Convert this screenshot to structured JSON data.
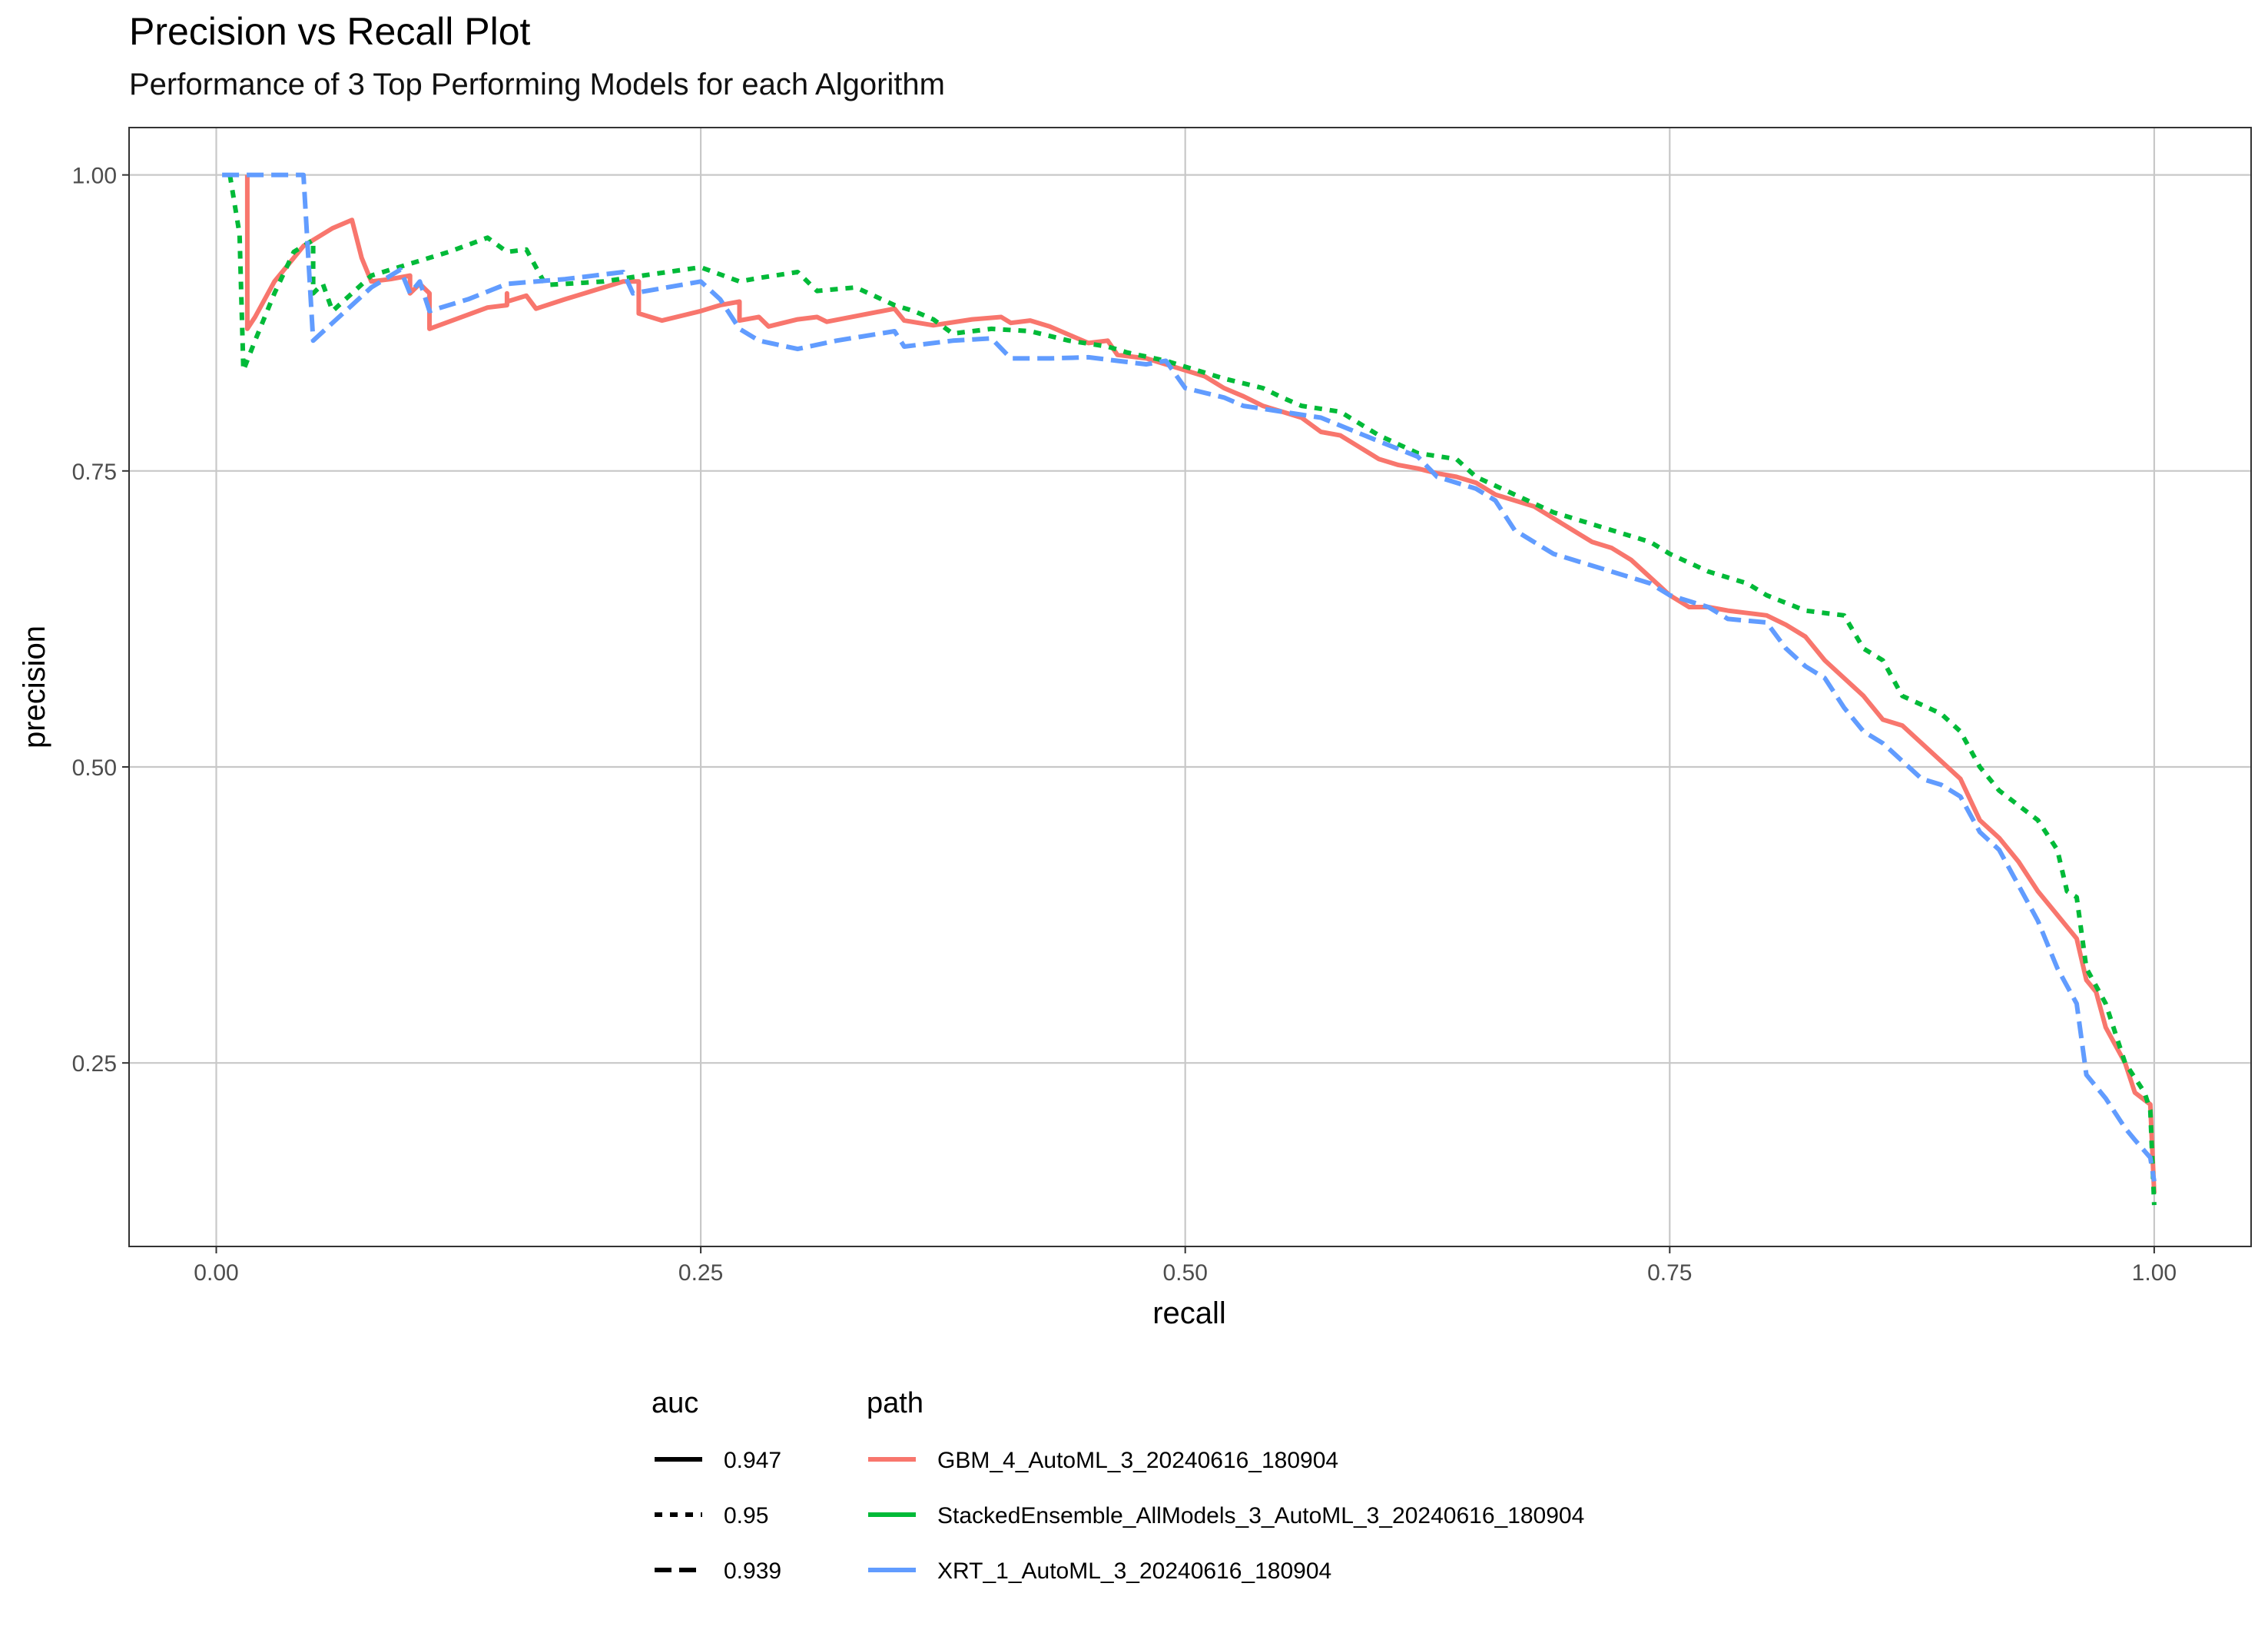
{
  "chart_data": {
    "type": "line",
    "title": "Precision vs Recall Plot",
    "subtitle": "Performance of 3 Top Performing Models for each Algorithm",
    "xlabel": "recall",
    "ylabel": "precision",
    "xlim": [
      -0.045,
      1.05
    ],
    "ylim": [
      0.095,
      1.04
    ],
    "x_ticks": [
      0.0,
      0.25,
      0.5,
      0.75,
      1.0
    ],
    "x_tick_labels": [
      "0.00",
      "0.25",
      "0.50",
      "0.75",
      "1.00"
    ],
    "y_ticks": [
      0.25,
      0.5,
      0.75,
      1.0
    ],
    "y_tick_labels": [
      "0.25",
      "0.50",
      "0.75",
      "1.00"
    ],
    "grid": true,
    "legend_position": "bottom",
    "legend": {
      "auc_title": "auc",
      "path_title": "path",
      "auc_entries": [
        {
          "label": "0.947",
          "linetype": "solid"
        },
        {
          "label": "0.95",
          "linetype": "dashed"
        },
        {
          "label": "0.939",
          "linetype": "longdash"
        }
      ]
    },
    "series": [
      {
        "name": "GBM_4_AutoML_3_20240616_180904",
        "auc": "0.947",
        "color": "#F8766D",
        "linetype": "solid",
        "points": [
          [
            0.016,
            1.0
          ],
          [
            0.016,
            0.87
          ],
          [
            0.02,
            0.88
          ],
          [
            0.03,
            0.91
          ],
          [
            0.045,
            0.94
          ],
          [
            0.06,
            0.955
          ],
          [
            0.07,
            0.962
          ],
          [
            0.075,
            0.93
          ],
          [
            0.08,
            0.91
          ],
          [
            0.09,
            0.912
          ],
          [
            0.1,
            0.915
          ],
          [
            0.1,
            0.9
          ],
          [
            0.105,
            0.908
          ],
          [
            0.11,
            0.9
          ],
          [
            0.11,
            0.87
          ],
          [
            0.13,
            0.882
          ],
          [
            0.14,
            0.888
          ],
          [
            0.15,
            0.89
          ],
          [
            0.15,
            0.9
          ],
          [
            0.15,
            0.893
          ],
          [
            0.16,
            0.898
          ],
          [
            0.165,
            0.887
          ],
          [
            0.18,
            0.895
          ],
          [
            0.21,
            0.91
          ],
          [
            0.218,
            0.91
          ],
          [
            0.218,
            0.883
          ],
          [
            0.23,
            0.877
          ],
          [
            0.25,
            0.885
          ],
          [
            0.26,
            0.89
          ],
          [
            0.27,
            0.893
          ],
          [
            0.27,
            0.877
          ],
          [
            0.28,
            0.88
          ],
          [
            0.285,
            0.872
          ],
          [
            0.3,
            0.878
          ],
          [
            0.31,
            0.88
          ],
          [
            0.315,
            0.876
          ],
          [
            0.35,
            0.887
          ],
          [
            0.355,
            0.877
          ],
          [
            0.37,
            0.873
          ],
          [
            0.39,
            0.878
          ],
          [
            0.405,
            0.88
          ],
          [
            0.41,
            0.875
          ],
          [
            0.42,
            0.877
          ],
          [
            0.43,
            0.872
          ],
          [
            0.44,
            0.865
          ],
          [
            0.45,
            0.858
          ],
          [
            0.46,
            0.86
          ],
          [
            0.465,
            0.848
          ],
          [
            0.48,
            0.845
          ],
          [
            0.49,
            0.84
          ],
          [
            0.5,
            0.835
          ],
          [
            0.51,
            0.83
          ],
          [
            0.52,
            0.82
          ],
          [
            0.53,
            0.813
          ],
          [
            0.54,
            0.805
          ],
          [
            0.55,
            0.8
          ],
          [
            0.56,
            0.795
          ],
          [
            0.57,
            0.783
          ],
          [
            0.58,
            0.78
          ],
          [
            0.59,
            0.77
          ],
          [
            0.6,
            0.76
          ],
          [
            0.61,
            0.755
          ],
          [
            0.62,
            0.752
          ],
          [
            0.63,
            0.748
          ],
          [
            0.64,
            0.745
          ],
          [
            0.65,
            0.74
          ],
          [
            0.66,
            0.73
          ],
          [
            0.67,
            0.725
          ],
          [
            0.68,
            0.72
          ],
          [
            0.69,
            0.71
          ],
          [
            0.7,
            0.7
          ],
          [
            0.71,
            0.69
          ],
          [
            0.72,
            0.685
          ],
          [
            0.73,
            0.675
          ],
          [
            0.74,
            0.66
          ],
          [
            0.75,
            0.645
          ],
          [
            0.76,
            0.635
          ],
          [
            0.77,
            0.635
          ],
          [
            0.78,
            0.632
          ],
          [
            0.79,
            0.63
          ],
          [
            0.8,
            0.628
          ],
          [
            0.81,
            0.62
          ],
          [
            0.82,
            0.61
          ],
          [
            0.83,
            0.59
          ],
          [
            0.84,
            0.575
          ],
          [
            0.85,
            0.56
          ],
          [
            0.86,
            0.54
          ],
          [
            0.87,
            0.535
          ],
          [
            0.88,
            0.52
          ],
          [
            0.89,
            0.505
          ],
          [
            0.9,
            0.49
          ],
          [
            0.91,
            0.455
          ],
          [
            0.92,
            0.44
          ],
          [
            0.93,
            0.42
          ],
          [
            0.94,
            0.395
          ],
          [
            0.95,
            0.375
          ],
          [
            0.96,
            0.355
          ],
          [
            0.965,
            0.32
          ],
          [
            0.97,
            0.31
          ],
          [
            0.975,
            0.28
          ],
          [
            0.985,
            0.25
          ],
          [
            0.99,
            0.225
          ],
          [
            0.998,
            0.215
          ],
          [
            1.0,
            0.14
          ]
        ]
      },
      {
        "name": "StackedEnsemble_AllModels_3_AutoML_3_20240616_180904",
        "auc": "0.95",
        "color": "#00BA38",
        "linetype": "dashed",
        "points": [
          [
            0.007,
            1.0
          ],
          [
            0.012,
            0.95
          ],
          [
            0.014,
            0.835
          ],
          [
            0.02,
            0.86
          ],
          [
            0.03,
            0.9
          ],
          [
            0.04,
            0.935
          ],
          [
            0.05,
            0.945
          ],
          [
            0.05,
            0.9
          ],
          [
            0.055,
            0.908
          ],
          [
            0.06,
            0.885
          ],
          [
            0.07,
            0.9
          ],
          [
            0.08,
            0.915
          ],
          [
            0.1,
            0.925
          ],
          [
            0.12,
            0.935
          ],
          [
            0.14,
            0.947
          ],
          [
            0.15,
            0.935
          ],
          [
            0.16,
            0.937
          ],
          [
            0.17,
            0.907
          ],
          [
            0.2,
            0.91
          ],
          [
            0.22,
            0.915
          ],
          [
            0.25,
            0.922
          ],
          [
            0.27,
            0.91
          ],
          [
            0.28,
            0.913
          ],
          [
            0.3,
            0.918
          ],
          [
            0.31,
            0.902
          ],
          [
            0.33,
            0.905
          ],
          [
            0.35,
            0.89
          ],
          [
            0.36,
            0.885
          ],
          [
            0.37,
            0.878
          ],
          [
            0.38,
            0.866
          ],
          [
            0.4,
            0.87
          ],
          [
            0.42,
            0.868
          ],
          [
            0.44,
            0.86
          ],
          [
            0.46,
            0.855
          ],
          [
            0.47,
            0.85
          ],
          [
            0.49,
            0.843
          ],
          [
            0.5,
            0.838
          ],
          [
            0.52,
            0.828
          ],
          [
            0.54,
            0.82
          ],
          [
            0.55,
            0.812
          ],
          [
            0.56,
            0.805
          ],
          [
            0.58,
            0.8
          ],
          [
            0.6,
            0.78
          ],
          [
            0.62,
            0.765
          ],
          [
            0.64,
            0.76
          ],
          [
            0.65,
            0.745
          ],
          [
            0.67,
            0.73
          ],
          [
            0.69,
            0.715
          ],
          [
            0.7,
            0.71
          ],
          [
            0.72,
            0.7
          ],
          [
            0.74,
            0.69
          ],
          [
            0.75,
            0.68
          ],
          [
            0.77,
            0.665
          ],
          [
            0.79,
            0.655
          ],
          [
            0.8,
            0.645
          ],
          [
            0.82,
            0.632
          ],
          [
            0.84,
            0.628
          ],
          [
            0.85,
            0.6
          ],
          [
            0.86,
            0.59
          ],
          [
            0.87,
            0.56
          ],
          [
            0.89,
            0.545
          ],
          [
            0.9,
            0.53
          ],
          [
            0.91,
            0.5
          ],
          [
            0.92,
            0.48
          ],
          [
            0.94,
            0.455
          ],
          [
            0.95,
            0.43
          ],
          [
            0.955,
            0.395
          ],
          [
            0.96,
            0.39
          ],
          [
            0.965,
            0.33
          ],
          [
            0.975,
            0.3
          ],
          [
            0.985,
            0.25
          ],
          [
            0.995,
            0.225
          ],
          [
            0.998,
            0.21
          ],
          [
            1.0,
            0.13
          ]
        ]
      },
      {
        "name": "XRT_1_AutoML_3_20240616_180904",
        "auc": "0.939",
        "color": "#619CFF",
        "linetype": "longdash",
        "points": [
          [
            0.003,
            1.0
          ],
          [
            0.045,
            1.0
          ],
          [
            0.05,
            0.86
          ],
          [
            0.06,
            0.875
          ],
          [
            0.07,
            0.89
          ],
          [
            0.08,
            0.905
          ],
          [
            0.09,
            0.915
          ],
          [
            0.095,
            0.92
          ],
          [
            0.1,
            0.9
          ],
          [
            0.105,
            0.91
          ],
          [
            0.11,
            0.885
          ],
          [
            0.13,
            0.895
          ],
          [
            0.15,
            0.908
          ],
          [
            0.18,
            0.912
          ],
          [
            0.21,
            0.918
          ],
          [
            0.215,
            0.9
          ],
          [
            0.25,
            0.91
          ],
          [
            0.26,
            0.895
          ],
          [
            0.27,
            0.87
          ],
          [
            0.28,
            0.86
          ],
          [
            0.3,
            0.853
          ],
          [
            0.32,
            0.86
          ],
          [
            0.35,
            0.868
          ],
          [
            0.355,
            0.855
          ],
          [
            0.38,
            0.86
          ],
          [
            0.4,
            0.862
          ],
          [
            0.41,
            0.845
          ],
          [
            0.43,
            0.845
          ],
          [
            0.45,
            0.846
          ],
          [
            0.48,
            0.84
          ],
          [
            0.49,
            0.843
          ],
          [
            0.5,
            0.82
          ],
          [
            0.52,
            0.812
          ],
          [
            0.53,
            0.805
          ],
          [
            0.55,
            0.8
          ],
          [
            0.57,
            0.795
          ],
          [
            0.6,
            0.775
          ],
          [
            0.62,
            0.762
          ],
          [
            0.63,
            0.745
          ],
          [
            0.65,
            0.735
          ],
          [
            0.66,
            0.725
          ],
          [
            0.67,
            0.7
          ],
          [
            0.68,
            0.69
          ],
          [
            0.69,
            0.68
          ],
          [
            0.7,
            0.675
          ],
          [
            0.72,
            0.665
          ],
          [
            0.74,
            0.655
          ],
          [
            0.75,
            0.645
          ],
          [
            0.76,
            0.64
          ],
          [
            0.77,
            0.635
          ],
          [
            0.78,
            0.625
          ],
          [
            0.8,
            0.622
          ],
          [
            0.81,
            0.6
          ],
          [
            0.82,
            0.585
          ],
          [
            0.83,
            0.575
          ],
          [
            0.84,
            0.55
          ],
          [
            0.85,
            0.53
          ],
          [
            0.86,
            0.52
          ],
          [
            0.87,
            0.505
          ],
          [
            0.88,
            0.49
          ],
          [
            0.89,
            0.485
          ],
          [
            0.9,
            0.475
          ],
          [
            0.91,
            0.445
          ],
          [
            0.92,
            0.43
          ],
          [
            0.93,
            0.4
          ],
          [
            0.94,
            0.37
          ],
          [
            0.95,
            0.33
          ],
          [
            0.96,
            0.3
          ],
          [
            0.965,
            0.24
          ],
          [
            0.975,
            0.22
          ],
          [
            0.985,
            0.195
          ],
          [
            0.99,
            0.185
          ],
          [
            0.998,
            0.17
          ],
          [
            1.0,
            0.15
          ]
        ]
      }
    ]
  }
}
